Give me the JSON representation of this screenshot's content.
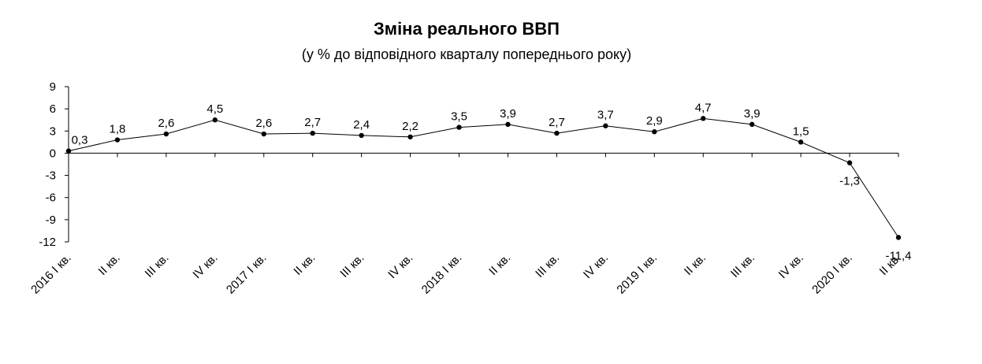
{
  "chart_data": {
    "type": "line",
    "title": "Зміна реального ВВП",
    "subtitle": "(у % до відповідного кварталу попереднього року)",
    "categories": [
      "2016 I кв.",
      "II кв.",
      "III кв.",
      "IV кв.",
      "2017 I кв.",
      "II кв.",
      "III кв.",
      "IV кв.",
      "2018 I кв.",
      "II кв.",
      "III кв.",
      "IV кв.",
      "2019 I кв.",
      "II кв.",
      "III кв.",
      "IV кв.",
      "2020 I кв.",
      "II кв."
    ],
    "series": [
      {
        "name": "Зміна реального ВВП",
        "color": "#000000",
        "values": [
          0.3,
          1.8,
          2.6,
          4.5,
          2.6,
          2.7,
          2.4,
          2.2,
          3.5,
          3.9,
          2.7,
          3.7,
          2.9,
          4.7,
          3.9,
          1.5,
          -1.3,
          -11.4
        ],
        "value_labels": [
          "0,3",
          "1,8",
          "2,6",
          "4,5",
          "2,6",
          "2,7",
          "2,4",
          "2,2",
          "3,5",
          "3,9",
          "2,7",
          "3,7",
          "2,9",
          "4,7",
          "3,9",
          "1,5",
          "-1,3",
          "-11,4"
        ]
      }
    ],
    "ylim": [
      -12,
      9
    ],
    "yticks": [
      -12,
      -9,
      -6,
      -3,
      0,
      3,
      6,
      9
    ],
    "grid": false
  }
}
